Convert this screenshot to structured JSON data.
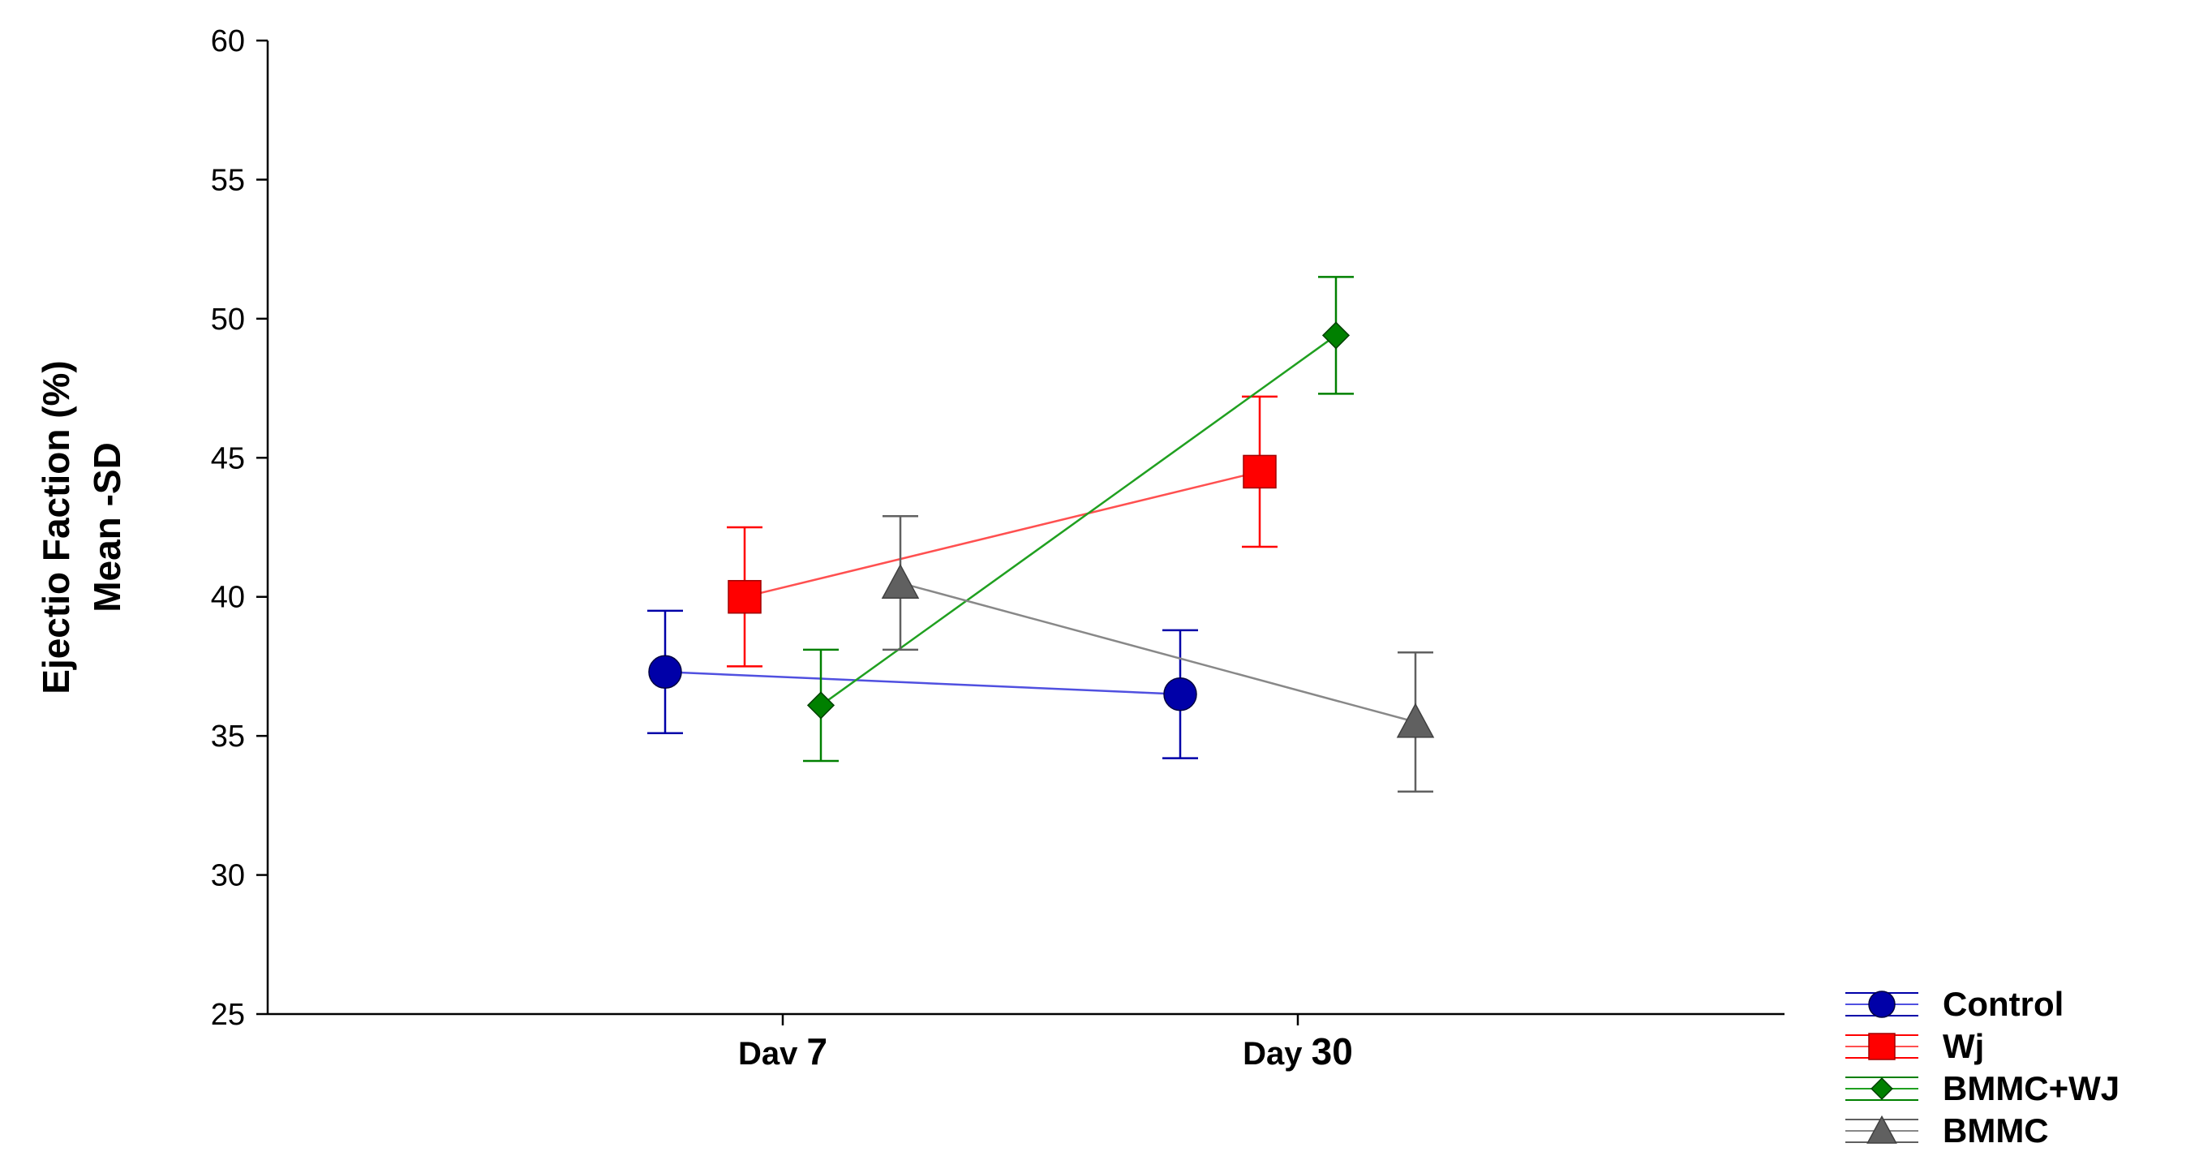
{
  "chart_data": {
    "type": "line",
    "title": "",
    "ylabel_line1": "Ejectio Faction (%)",
    "ylabel_line2": "Mean -SD",
    "xlabel": "",
    "categories": [
      "Dav 7",
      "Day 30"
    ],
    "category_label_parts": [
      [
        "Dav",
        "7"
      ],
      [
        "Day",
        "30"
      ]
    ],
    "ylim": [
      25,
      60
    ],
    "yticks": [
      25,
      30,
      35,
      40,
      45,
      50,
      55,
      60
    ],
    "grid": false,
    "error_bars": "±SD",
    "legend_position": "bottom-right",
    "series": [
      {
        "name": "Control",
        "marker": "circle",
        "color": "#0000a8",
        "line_color": "#5050e0",
        "values": [
          37.3,
          36.5
        ],
        "sd": [
          2.2,
          2.3
        ]
      },
      {
        "name": "Wj",
        "marker": "square",
        "color": "#ff0000",
        "line_color": "#ff5050",
        "values": [
          40.0,
          44.5
        ],
        "sd": [
          2.5,
          2.7
        ]
      },
      {
        "name": "BMMC+WJ",
        "marker": "diamond",
        "color": "#008000",
        "line_color": "#20a020",
        "values": [
          36.1,
          49.4
        ],
        "sd": [
          2.0,
          2.1
        ]
      },
      {
        "name": "BMMC",
        "marker": "triangle",
        "color": "#606060",
        "line_color": "#888888",
        "values": [
          40.5,
          35.5
        ],
        "sd": [
          2.4,
          2.5
        ]
      }
    ]
  }
}
